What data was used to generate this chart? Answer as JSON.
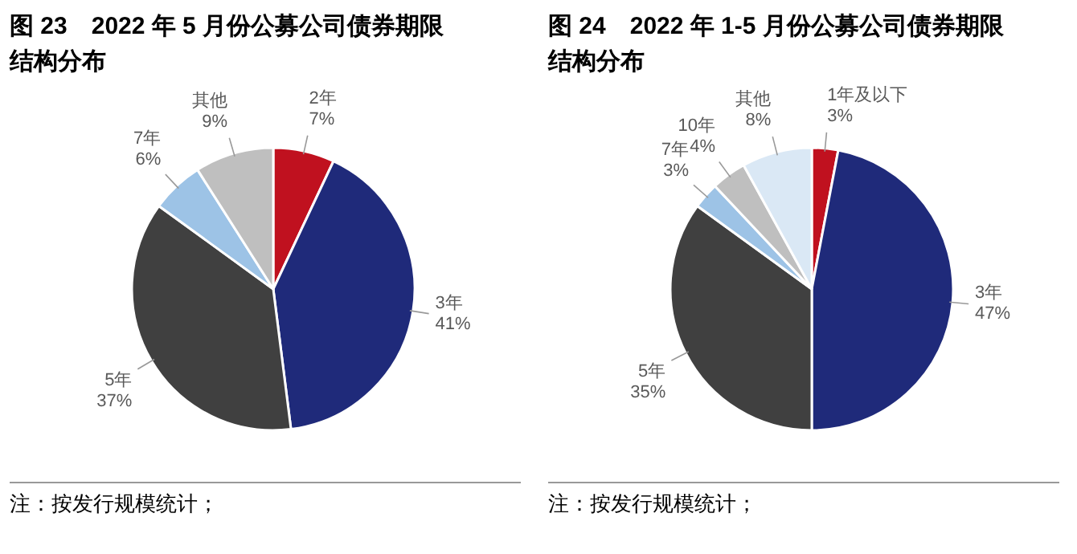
{
  "chart_data": [
    {
      "type": "pie",
      "title": "图 23　2022 年 5 月份公募公司债券期限结构分布",
      "categories": [
        "2年",
        "3年",
        "5年",
        "7年",
        "其他"
      ],
      "values": [
        7,
        41,
        37,
        6,
        9
      ],
      "value_labels": [
        "7%",
        "41%",
        "37%",
        "6%",
        "9%"
      ],
      "colors": [
        "#c0111f",
        "#1f2a7a",
        "#404040",
        "#9dc3e6",
        "#bfbfbf"
      ],
      "annotations": [
        "注：按发行规模统计；"
      ]
    },
    {
      "type": "pie",
      "title": "图 24　2022 年 1-5 月份公募公司债券期限结构分布",
      "categories": [
        "1年及以下",
        "3年",
        "5年",
        "7年",
        "10年",
        "其他"
      ],
      "values": [
        3,
        47,
        35,
        3,
        4,
        8
      ],
      "value_labels": [
        "3%",
        "47%",
        "35%",
        "3%",
        "4%",
        "8%"
      ],
      "colors": [
        "#c0111f",
        "#1f2a7a",
        "#404040",
        "#9dc3e6",
        "#bfbfbf",
        "#dae8f5"
      ],
      "annotations": [
        "注：按发行规模统计；"
      ]
    }
  ]
}
